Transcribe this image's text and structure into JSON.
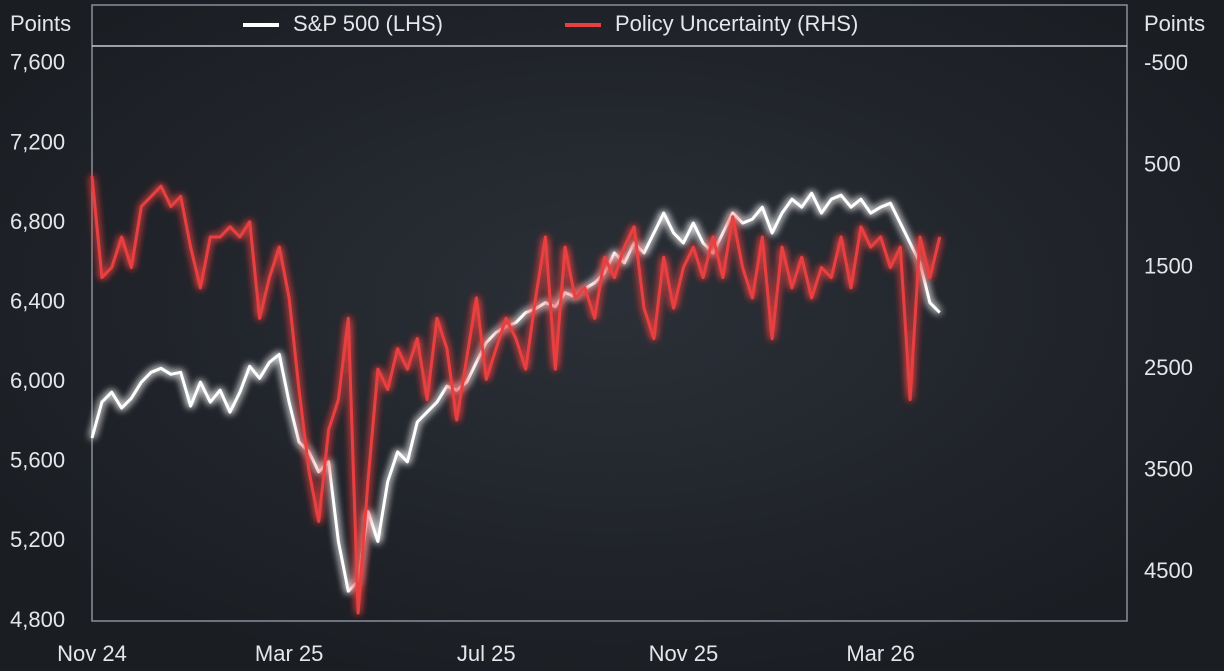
{
  "chart_data": {
    "type": "line",
    "ylabel": "Points",
    "y2label": "Points",
    "x": [
      0,
      0.2,
      0.4,
      0.6,
      0.8,
      1,
      1.2,
      1.4,
      1.6,
      1.8,
      2,
      2.2,
      2.4,
      2.6,
      2.8,
      3,
      3.2,
      3.4,
      3.6,
      3.8,
      4,
      4.2,
      4.4,
      4.6,
      4.8,
      5,
      5.2,
      5.4,
      5.6,
      5.8,
      6,
      6.2,
      6.4,
      6.6,
      6.8,
      7,
      7.2,
      7.4,
      7.6,
      7.8,
      8,
      8.2,
      8.4,
      8.6,
      8.8,
      9,
      9.2,
      9.4,
      9.6,
      9.8,
      10,
      10.2,
      10.4,
      10.6,
      10.8,
      11,
      11.2,
      11.4,
      11.6,
      11.8,
      12,
      12.2,
      12.4,
      12.6,
      12.8,
      13,
      13.2,
      13.4,
      13.6,
      13.8,
      14,
      14.2,
      14.4,
      14.6,
      14.8,
      15,
      15.2,
      15.4,
      15.6,
      15.8,
      16,
      16.2,
      16.4,
      16.6,
      16.8,
      17,
      17.2
    ],
    "xlim": [
      0,
      21
    ],
    "xticks": [
      {
        "value": 0,
        "label": "Nov 24"
      },
      {
        "value": 4,
        "label": "Mar 25"
      },
      {
        "value": 8,
        "label": "Jul 25"
      },
      {
        "value": 12,
        "label": "Nov 25"
      },
      {
        "value": 16,
        "label": "Mar 26"
      }
    ],
    "ylim": [
      4800,
      7690
    ],
    "yticks": [
      {
        "value": 4800,
        "label": "4,800"
      },
      {
        "value": 5200,
        "label": "5,200"
      },
      {
        "value": 5600,
        "label": "5,600"
      },
      {
        "value": 6000,
        "label": "6,000"
      },
      {
        "value": 6400,
        "label": "6,400"
      },
      {
        "value": 6800,
        "label": "6,800"
      },
      {
        "value": 7200,
        "label": "7,200"
      },
      {
        "value": 7600,
        "label": "7,600"
      }
    ],
    "y2lim": [
      4980,
      -680
    ],
    "y2ticks": [
      -500,
      500,
      1500,
      2500,
      3500,
      4500
    ],
    "series": [
      {
        "name": "S&P 500 (LHS)",
        "color": "#ffffff",
        "axis": "y",
        "values": [
          5720,
          5900,
          5950,
          5870,
          5920,
          6000,
          6050,
          6070,
          6040,
          6050,
          5880,
          6000,
          5900,
          5960,
          5850,
          5950,
          6080,
          6020,
          6100,
          6140,
          5900,
          5700,
          5650,
          5550,
          5600,
          5200,
          4950,
          5000,
          5350,
          5200,
          5500,
          5650,
          5600,
          5800,
          5850,
          5900,
          5980,
          5960,
          6000,
          6100,
          6200,
          6250,
          6280,
          6300,
          6350,
          6370,
          6400,
          6380,
          6450,
          6430,
          6470,
          6500,
          6550,
          6650,
          6600,
          6700,
          6650,
          6750,
          6850,
          6750,
          6700,
          6800,
          6700,
          6650,
          6750,
          6850,
          6800,
          6820,
          6880,
          6750,
          6850,
          6920,
          6880,
          6950,
          6850,
          6920,
          6940,
          6880,
          6920,
          6850,
          6880,
          6900,
          6800,
          6700,
          6600,
          6400,
          6350
        ]
      },
      {
        "name": "Policy Uncertainty (RHS)",
        "color": "#e8403f",
        "axis": "y2",
        "values": [
          600,
          1600,
          1500,
          1200,
          1500,
          900,
          800,
          700,
          900,
          800,
          1300,
          1700,
          1200,
          1200,
          1100,
          1200,
          1050,
          2000,
          1600,
          1300,
          1800,
          2700,
          3500,
          4000,
          3100,
          2800,
          2000,
          4900,
          3600,
          2500,
          2700,
          2300,
          2500,
          2200,
          2800,
          2000,
          2300,
          3000,
          2400,
          1800,
          2600,
          2300,
          2000,
          2200,
          2500,
          1800,
          1200,
          2500,
          1300,
          1800,
          1700,
          2000,
          1400,
          1600,
          1300,
          1100,
          1900,
          2200,
          1400,
          1900,
          1500,
          1300,
          1600,
          1200,
          1600,
          1000,
          1500,
          1800,
          1200,
          2200,
          1300,
          1700,
          1400,
          1800,
          1500,
          1600,
          1200,
          1700,
          1100,
          1300,
          1200,
          1500,
          1300,
          2800,
          1200,
          1600,
          1200
        ]
      }
    ]
  }
}
